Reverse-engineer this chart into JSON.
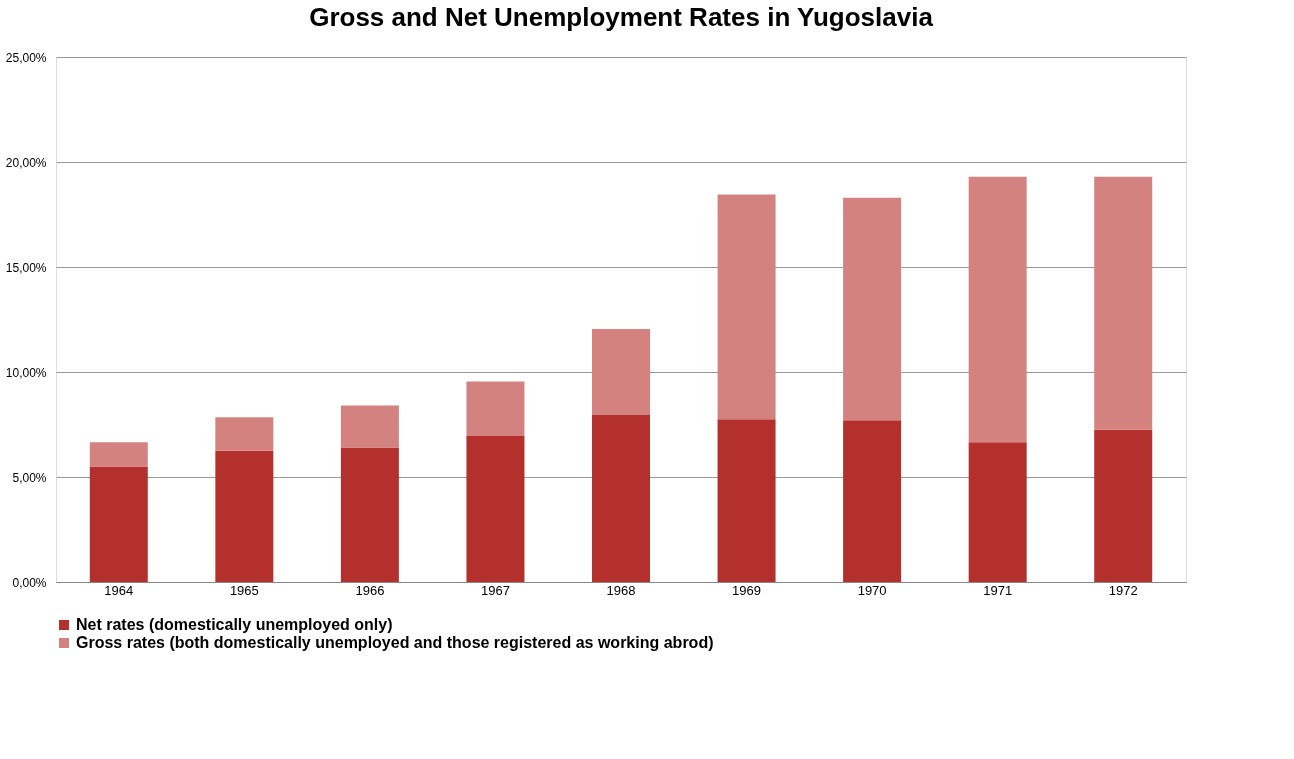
{
  "chart_data": {
    "type": "bar",
    "title": "Gross and Net Unemployment Rates in Yugoslavia",
    "stacked": true,
    "categories": [
      "1964",
      "1965",
      "1966",
      "1967",
      "1968",
      "1969",
      "1970",
      "1971",
      "1972"
    ],
    "series": [
      {
        "name": "Net rates (domestically unemployed only)",
        "color": "#b3302d",
        "values": [
          5.5,
          6.25,
          6.4,
          6.95,
          7.95,
          7.75,
          7.7,
          6.65,
          7.25
        ]
      },
      {
        "name": "Gross rates (both domestically unemployed and those registered as working abrod)",
        "color": "#d4827f",
        "values": [
          1.15,
          1.6,
          2.0,
          2.6,
          4.1,
          10.7,
          10.6,
          12.65,
          12.05
        ]
      }
    ],
    "ylim": [
      0,
      25
    ],
    "yticks": [
      {
        "value": 0,
        "label": "0,00%"
      },
      {
        "value": 5,
        "label": "5,00%"
      },
      {
        "value": 10,
        "label": "10,00%"
      },
      {
        "value": 15,
        "label": "15,00%"
      },
      {
        "value": 20,
        "label": "20,00%"
      },
      {
        "value": 25,
        "label": "25,00%"
      }
    ],
    "grid": "y",
    "legend": "bottom"
  }
}
